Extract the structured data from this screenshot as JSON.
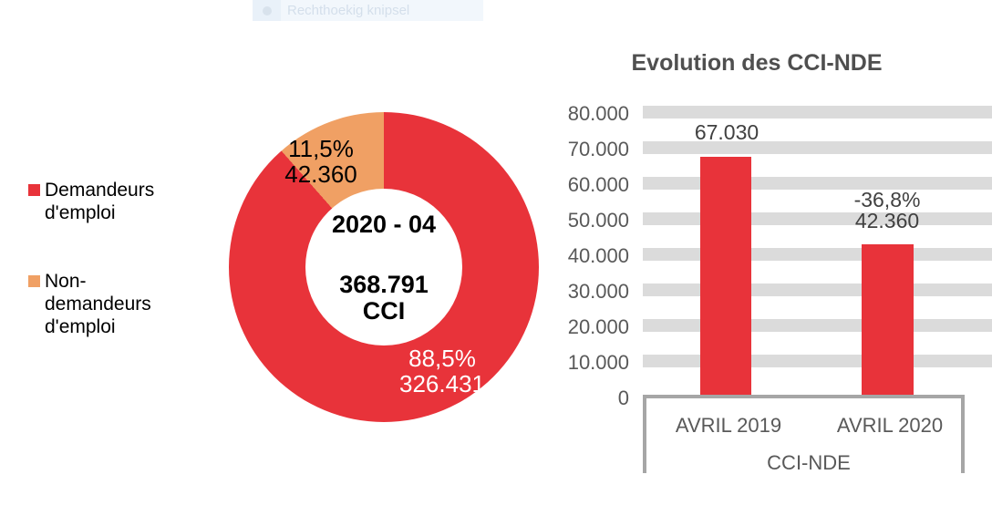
{
  "overlay": {
    "label": "Rechthoekig knipsel"
  },
  "colors": {
    "red": "#e8333a",
    "orange": "#f0a064",
    "grid_band": "#dbdbdb",
    "axis_frame": "#a6a6a6",
    "axis_text": "#595959",
    "title_text": "#4f4f4f"
  },
  "legend": {
    "items": [
      {
        "label": "Demandeurs d'emploi",
        "color": "#e8333a"
      },
      {
        "label": "Non-demandeurs d'emploi",
        "color": "#f0a064"
      }
    ]
  },
  "donut": {
    "center": {
      "period": "2020 - 04",
      "total": "368.791",
      "unit": "CCI"
    },
    "segments": [
      {
        "name": "Demandeurs d'emploi",
        "pct": "88,5%",
        "value": "326.431"
      },
      {
        "name": "Non-demandeurs d'emploi",
        "pct": "11,5%",
        "value": "42.360"
      }
    ]
  },
  "bar_chart": {
    "title": "Evolution des CCI-NDE",
    "y_ticks": [
      "80.000",
      "70.000",
      "60.000",
      "50.000",
      "40.000",
      "30.000",
      "20.000",
      "10.000",
      "0"
    ],
    "bar1_label": "67.030",
    "bar2_delta": "-36,8%",
    "bar2_label": "42.360",
    "categories": [
      "AVRIL 2019",
      "AVRIL 2020"
    ],
    "group_label": "CCI-NDE"
  },
  "chart_data": [
    {
      "type": "pie",
      "donut": true,
      "title": "2020 - 04",
      "center_text": [
        "2020 - 04",
        "368.791",
        "CCI"
      ],
      "labels": [
        "Demandeurs d'emploi",
        "Non-demandeurs d'emploi"
      ],
      "values": [
        326431,
        42360
      ],
      "percentages": [
        88.5,
        11.5
      ],
      "colors": [
        "#e8333a",
        "#f0a064"
      ],
      "legend_position": "left"
    },
    {
      "type": "bar",
      "title": "Evolution des CCI-NDE",
      "categories": [
        "AVRIL 2019",
        "AVRIL 2020"
      ],
      "values": [
        67030,
        42360
      ],
      "data_labels": [
        "67.030",
        "-36,8% 42.360"
      ],
      "xlabel": "CCI-NDE",
      "ylabel": "",
      "ylim": [
        0,
        80000
      ],
      "ytick_step": 10000,
      "grid": true,
      "bar_color": "#e8333a"
    }
  ]
}
